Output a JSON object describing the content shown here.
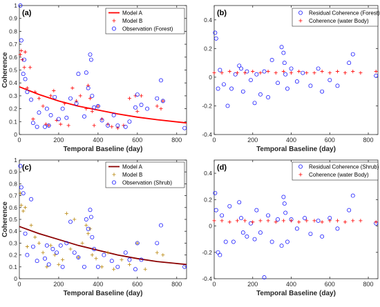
{
  "chart_data": [
    {
      "type": "scatter",
      "panel_label": "(a)",
      "xlabel": "Temporal Baseline (day)",
      "ylabel": "Coherence",
      "xlim": [
        0,
        850
      ],
      "ylim": [
        0,
        1
      ],
      "xticks": [
        0,
        200,
        400,
        600,
        800
      ],
      "yticks": [
        0,
        0.1,
        0.2,
        0.3,
        0.4,
        0.5,
        0.6,
        0.7,
        0.8,
        0.9,
        1
      ],
      "xtick_labels": [
        "0",
        "200",
        "400",
        "600",
        "800"
      ],
      "ytick_labels": [
        "0",
        "0.1",
        "0.2",
        "0.3",
        "0.4",
        "0.5",
        "0.6",
        "0.7",
        "0.8",
        "0.9",
        "1"
      ],
      "legend_position": "top-right",
      "series": [
        {
          "name": "Model A",
          "kind": "line",
          "color": "#ff0000",
          "x": [
            0,
            100,
            200,
            300,
            400,
            500,
            600,
            700,
            850
          ],
          "y": [
            0.37,
            0.31,
            0.26,
            0.22,
            0.19,
            0.16,
            0.135,
            0.115,
            0.09
          ]
        },
        {
          "name": "Model B",
          "kind": "plus",
          "color": "#ff0000",
          "x": [
            5,
            10,
            15,
            25,
            30,
            40,
            55,
            70,
            80,
            100,
            120,
            135,
            150,
            160,
            175,
            190,
            210,
            230,
            250,
            270,
            290,
            310,
            340,
            350,
            360,
            370,
            380,
            400,
            420,
            450,
            470,
            500,
            530,
            560,
            590,
            600,
            620,
            700,
            720,
            730
          ],
          "y": [
            0.62,
            0.65,
            0.58,
            0.52,
            0.64,
            0.36,
            0.52,
            0.12,
            0.33,
            0.28,
            0.22,
            0.08,
            0.07,
            0.3,
            0.34,
            0.11,
            0.08,
            0.24,
            0.07,
            0.36,
            0.26,
            0.3,
            0.2,
            0.38,
            0.28,
            0.18,
            0.07,
            0.22,
            0.12,
            0.08,
            0.06,
            0.05,
            0.07,
            0.28,
            0.3,
            0.18,
            0.3,
            0.22,
            0.2,
            0.26
          ]
        },
        {
          "name": "Observation (Forest)",
          "kind": "circle",
          "color": "#0000ff",
          "x": [
            5,
            10,
            20,
            25,
            30,
            40,
            60,
            70,
            90,
            100,
            130,
            140,
            150,
            160,
            180,
            200,
            220,
            240,
            260,
            290,
            300,
            330,
            340,
            350,
            360,
            365,
            370,
            380,
            400,
            420,
            450,
            480,
            500,
            540,
            560,
            590,
            600,
            620,
            650,
            700,
            720,
            730,
            840
          ],
          "y": [
            1.0,
            0.73,
            0.47,
            0.58,
            0.43,
            0.33,
            0.27,
            0.09,
            0.06,
            0.17,
            0.06,
            0.2,
            0.07,
            0.15,
            0.29,
            0.12,
            0.2,
            0.13,
            0.28,
            0.24,
            0.47,
            0.14,
            0.48,
            0.36,
            0.62,
            0.58,
            0.3,
            0.21,
            0.22,
            0.11,
            0.07,
            0.15,
            0.07,
            0.06,
            0.1,
            0.21,
            0.31,
            0.23,
            0.2,
            0.28,
            0.42,
            0.26,
            0.05
          ]
        }
      ]
    },
    {
      "type": "scatter",
      "panel_label": "(b)",
      "xlabel": "Temporal Baseline (day)",
      "ylabel": "",
      "xlim": [
        0,
        850
      ],
      "ylim": [
        -0.4,
        0.5
      ],
      "xticks": [
        0,
        200,
        400,
        600,
        800
      ],
      "yticks": [
        -0.4,
        -0.2,
        0,
        0.2,
        0.4
      ],
      "xtick_labels": [
        "0",
        "200",
        "400",
        "600",
        "800"
      ],
      "ytick_labels": [
        "-0.4",
        "-0.2",
        "0",
        "0.2",
        "0.4"
      ],
      "legend_position": "top-right",
      "series": [
        {
          "name": "Residual Coherence (Forest)",
          "kind": "circle",
          "color": "#0000ff",
          "x": [
            5,
            10,
            20,
            30,
            50,
            70,
            90,
            110,
            130,
            140,
            150,
            170,
            190,
            210,
            220,
            240,
            260,
            280,
            300,
            330,
            350,
            360,
            365,
            370,
            380,
            400,
            430,
            460,
            500,
            540,
            560,
            600,
            640,
            700,
            720,
            840
          ],
          "y": [
            0.31,
            0.27,
            -0.08,
            0.05,
            -0.05,
            -0.2,
            -0.08,
            0.02,
            0.08,
            0.06,
            -0.1,
            0.04,
            -0.02,
            -0.18,
            0.02,
            -0.12,
            0.04,
            -0.14,
            0.12,
            -0.04,
            0.21,
            0.17,
            0.1,
            0.02,
            -0.08,
            0.06,
            -0.03,
            0.03,
            -0.06,
            0.06,
            -0.1,
            -0.02,
            -0.06,
            0.1,
            0.16,
            0.01
          ]
        },
        {
          "name": "Coherence (water Body)",
          "kind": "plus",
          "color": "#ff0000",
          "x": [
            0,
            40,
            80,
            120,
            160,
            200,
            240,
            280,
            320,
            360,
            400,
            440,
            480,
            520,
            560,
            600,
            640,
            680,
            720,
            760,
            840
          ],
          "y": [
            0.03,
            0.03,
            0.04,
            0.03,
            0.03,
            0.04,
            0.03,
            0.04,
            0.03,
            0.04,
            0.03,
            0.04,
            0.03,
            0.03,
            0.04,
            0.03,
            0.04,
            0.03,
            0.04,
            0.03,
            0.04
          ]
        }
      ]
    },
    {
      "type": "scatter",
      "panel_label": "(c)",
      "xlabel": "Temporal Baseline (day)",
      "ylabel": "Coherence",
      "xlim": [
        0,
        850
      ],
      "ylim": [
        0,
        1
      ],
      "xticks": [
        0,
        200,
        400,
        600,
        800
      ],
      "yticks": [
        0,
        0.1,
        0.2,
        0.3,
        0.4,
        0.5,
        0.6,
        0.7,
        0.8,
        0.9,
        1
      ],
      "xtick_labels": [
        "0",
        "200",
        "400",
        "600",
        "800"
      ],
      "ytick_labels": [
        "0",
        "0.1",
        "0.2",
        "0.3",
        "0.4",
        "0.5",
        "0.6",
        "0.7",
        "0.8",
        "0.9",
        "1"
      ],
      "legend_position": "top-right",
      "series": [
        {
          "name": "Model A",
          "kind": "line",
          "color": "#8b0000",
          "x": [
            0,
            100,
            200,
            300,
            400,
            500,
            600,
            700,
            850
          ],
          "y": [
            0.44,
            0.38,
            0.33,
            0.28,
            0.24,
            0.2,
            0.17,
            0.145,
            0.12
          ]
        },
        {
          "name": "Model B",
          "kind": "plus",
          "color": "#b8860b",
          "x": [
            5,
            10,
            20,
            30,
            40,
            60,
            80,
            100,
            120,
            140,
            160,
            180,
            200,
            220,
            240,
            260,
            280,
            300,
            320,
            340,
            350,
            360,
            370,
            390,
            420,
            450,
            480,
            520,
            560,
            600,
            640,
            700,
            730
          ],
          "y": [
            0.72,
            0.62,
            0.57,
            0.6,
            0.27,
            0.45,
            0.35,
            0.3,
            0.22,
            0.1,
            0.28,
            0.2,
            0.12,
            0.16,
            0.55,
            0.25,
            0.5,
            0.18,
            0.3,
            0.45,
            0.38,
            0.42,
            0.2,
            0.17,
            0.1,
            0.22,
            0.08,
            0.16,
            0.12,
            0.3,
            0.08,
            0.22,
            0.2
          ]
        },
        {
          "name": "Observation (Shrub)",
          "kind": "circle",
          "color": "#0000ff",
          "x": [
            5,
            10,
            20,
            30,
            40,
            60,
            70,
            90,
            130,
            140,
            150,
            170,
            190,
            210,
            220,
            240,
            260,
            280,
            300,
            330,
            340,
            350,
            360,
            365,
            370,
            380,
            400,
            430,
            470,
            500,
            540,
            560,
            590,
            600,
            620,
            700,
            720,
            840
          ],
          "y": [
            0.95,
            0.77,
            0.72,
            0.38,
            0.2,
            0.67,
            0.27,
            0.15,
            0.17,
            0.28,
            0.12,
            0.25,
            0.22,
            0.28,
            0.1,
            0.3,
            0.48,
            0.22,
            0.18,
            0.1,
            0.5,
            0.42,
            0.58,
            0.52,
            0.35,
            0.25,
            0.1,
            0.2,
            0.15,
            0.1,
            0.22,
            0.16,
            0.08,
            0.3,
            0.16,
            0.3,
            0.45,
            0.1
          ]
        }
      ]
    },
    {
      "type": "scatter",
      "panel_label": "(d)",
      "xlabel": "Temporal Baseline (day)",
      "ylabel": "",
      "xlim": [
        0,
        850
      ],
      "ylim": [
        -0.4,
        0.5
      ],
      "xticks": [
        0,
        200,
        400,
        600,
        800
      ],
      "yticks": [
        -0.4,
        -0.2,
        0,
        0.2,
        0.4
      ],
      "xtick_labels": [
        "0",
        "200",
        "400",
        "600",
        "800"
      ],
      "ytick_labels": [
        "-0.4",
        "-0.2",
        "0",
        "0.2",
        "0.4"
      ],
      "legend_position": "top-right",
      "series": [
        {
          "name": "Residual Coherence (Shrub)",
          "kind": "circle",
          "color": "#0000ff",
          "x": [
            5,
            10,
            20,
            30,
            40,
            60,
            80,
            100,
            130,
            140,
            150,
            170,
            190,
            210,
            220,
            240,
            260,
            280,
            300,
            330,
            350,
            360,
            365,
            370,
            380,
            400,
            430,
            470,
            500,
            540,
            560,
            600,
            640,
            700,
            720,
            840
          ],
          "y": [
            0.25,
            0.12,
            -0.2,
            -0.22,
            0.08,
            -0.12,
            0.15,
            -0.12,
            0.18,
            0.06,
            -0.05,
            -0.08,
            0.02,
            -0.1,
            0.12,
            -0.05,
            -0.39,
            0.08,
            -0.12,
            0.05,
            -0.15,
            0.22,
            0.17,
            0.1,
            -0.12,
            0.05,
            -0.02,
            0.06,
            -0.06,
            0.04,
            -0.08,
            0.06,
            -0.02,
            0.12,
            0.23,
            0.02
          ]
        },
        {
          "name": "Coherence (water Body)",
          "kind": "plus",
          "color": "#ff0000",
          "x": [
            0,
            40,
            80,
            120,
            160,
            200,
            240,
            280,
            320,
            360,
            400,
            440,
            480,
            520,
            560,
            600,
            640,
            680,
            720,
            760,
            840
          ],
          "y": [
            0.04,
            0.04,
            0.03,
            0.04,
            0.04,
            0.03,
            0.04,
            0.04,
            0.03,
            0.04,
            0.04,
            0.03,
            0.04,
            0.04,
            0.03,
            0.04,
            0.04,
            0.03,
            0.04,
            0.04,
            0.03
          ]
        }
      ]
    }
  ]
}
